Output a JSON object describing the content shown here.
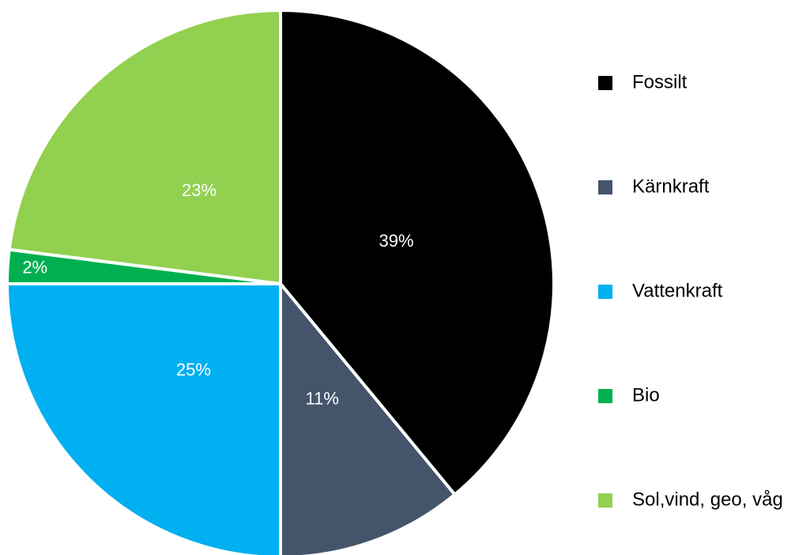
{
  "chart_data": {
    "type": "pie",
    "categories": [
      "Fossilt",
      "Kärnkraft",
      "Vattenkraft",
      "Bio",
      "Sol,vind, geo, våg"
    ],
    "values": [
      39,
      11,
      25,
      2,
      23
    ],
    "value_labels": [
      "39%",
      "11%",
      "25%",
      "2%",
      "23%"
    ],
    "colors": [
      "#000000",
      "#44546a",
      "#00b0f0",
      "#00b050",
      "#92d050"
    ],
    "legend": "right"
  }
}
